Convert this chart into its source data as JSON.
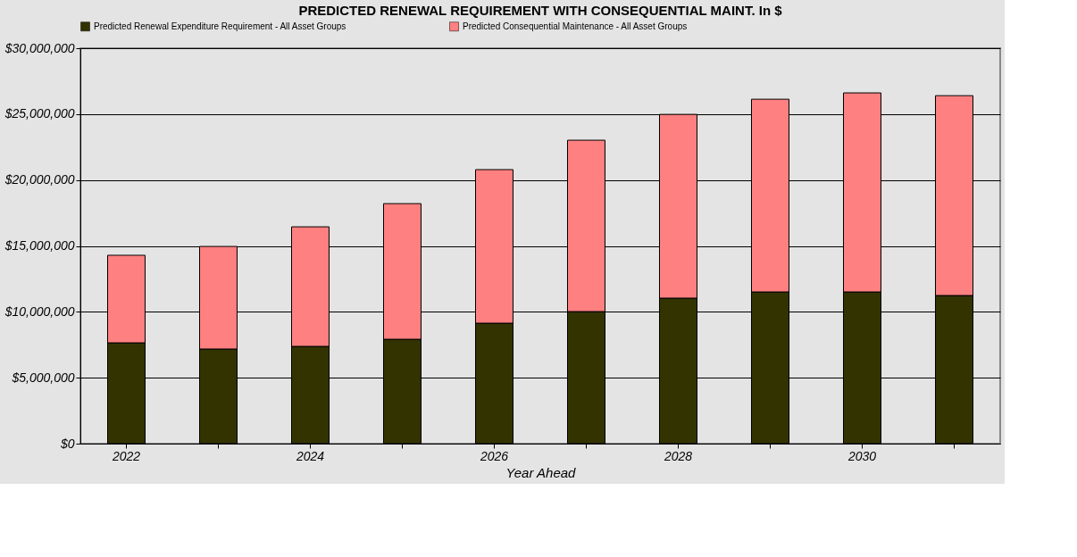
{
  "chart_data": {
    "type": "bar",
    "title": "PREDICTED RENEWAL REQUIREMENT WITH CONSEQUENTIAL MAINT. In $",
    "xlabel": "Year Ahead",
    "categories": [
      "2022",
      null,
      "2024",
      null,
      "2026",
      null,
      "2028",
      null,
      "2030",
      null
    ],
    "stacked": true,
    "series": [
      {
        "name": "Predicted Renewal Expenditure Requirement -  All Asset Groups",
        "color": "#333300",
        "values": [
          7650000,
          7180000,
          7380000,
          7920000,
          9140000,
          10020000,
          11040000,
          11510000,
          11510000,
          11240000
        ]
      },
      {
        "name": "Predicted Consequential Maintenance -  All Asset Groups",
        "color": "#ff8080",
        "values": [
          6640000,
          7780000,
          9070000,
          10290000,
          11650000,
          13000000,
          13940000,
          14620000,
          15100000,
          15160000
        ]
      }
    ],
    "ylim": [
      0,
      30000000
    ],
    "yticks": [
      {
        "value": 0,
        "label": "$0"
      },
      {
        "value": 5000000,
        "label": "$5,000,000"
      },
      {
        "value": 10000000,
        "label": "$10,000,000"
      },
      {
        "value": 15000000,
        "label": "$15,000,000"
      },
      {
        "value": 20000000,
        "label": "$20,000,000"
      },
      {
        "value": 25000000,
        "label": "$25,000,000"
      },
      {
        "value": 30000000,
        "label": "$30,000,000"
      }
    ],
    "grid": "y",
    "legend": "top"
  }
}
